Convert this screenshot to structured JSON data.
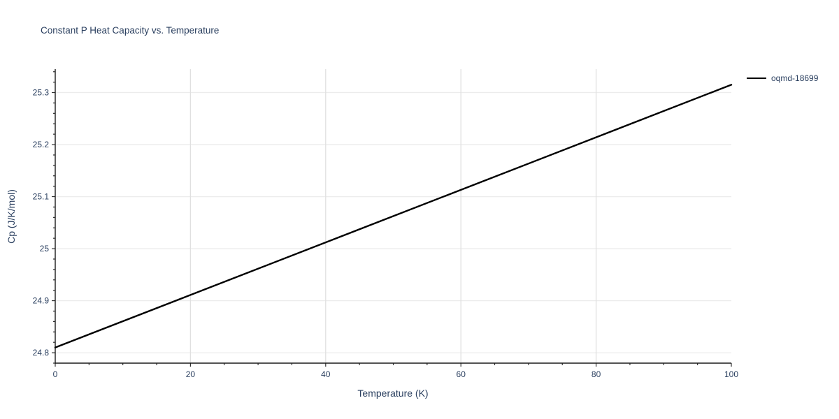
{
  "chart": {
    "title": "Constant P Heat Capacity vs. Temperature",
    "x_axis": {
      "title": "Temperature (K)",
      "ticks": [
        0,
        20,
        40,
        60,
        80,
        100
      ],
      "minor_step": 5
    },
    "y_axis": {
      "title": "Cp (J/K/mol)",
      "ticks": [
        24.8,
        24.9,
        25,
        25.1,
        25.2,
        25.3
      ],
      "minor_step": 0.02
    },
    "legend": {
      "entries": [
        {
          "label": "oqmd-18699",
          "color": "#000000"
        }
      ]
    },
    "colors": {
      "text": "#2a3f5f",
      "grid_horizontal": "#ececec",
      "grid_vertical": "#e0e0e0",
      "axis": "#1a1a1a",
      "tick": "#333333",
      "background": "#ffffff"
    }
  },
  "chart_data": {
    "type": "line",
    "title": "Constant P Heat Capacity vs. Temperature",
    "xlabel": "Temperature (K)",
    "ylabel": "Cp (J/K/mol)",
    "xlim": [
      0,
      100
    ],
    "ylim": [
      24.78,
      25.345
    ],
    "grid": true,
    "legend_position": "top-right",
    "series": [
      {
        "name": "oqmd-18699",
        "color": "#000000",
        "x": [
          0,
          20,
          40,
          60,
          80,
          100
        ],
        "y": [
          24.81,
          24.911,
          25.012,
          25.113,
          25.214,
          25.315
        ]
      }
    ]
  }
}
